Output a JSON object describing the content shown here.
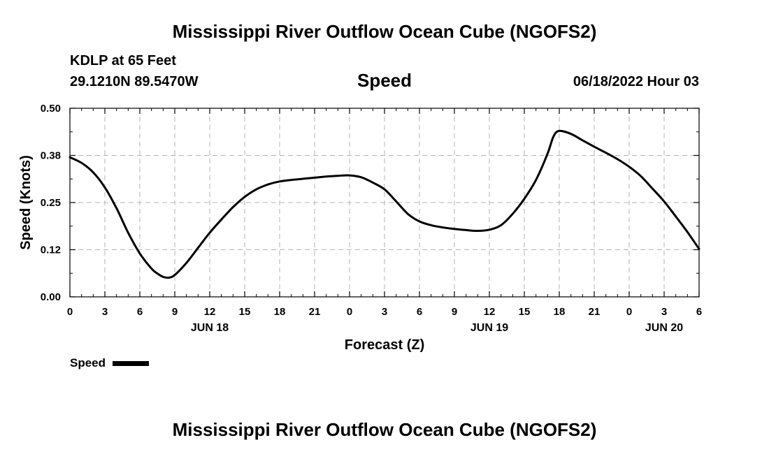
{
  "page": {
    "title": "Mississippi River Outflow Ocean Cube (NGOFS2)",
    "station_line": "KDLP at 65 Feet",
    "coords_line": "29.1210N  89.5470W",
    "datetime": "06/18/2022 Hour 03",
    "footer_title": "Mississippi River Outflow Ocean Cube (NGOFS2)"
  },
  "chart_data": {
    "type": "line",
    "title": "Speed",
    "xlabel": "Forecast (Z)",
    "ylabel": "Speed (Knots)",
    "xlim": [
      0,
      54
    ],
    "ylim": [
      0,
      0.5
    ],
    "grid": true,
    "x_ticks": [
      0,
      3,
      6,
      9,
      12,
      15,
      18,
      21,
      24,
      27,
      30,
      33,
      36,
      39,
      42,
      45,
      48,
      51,
      54
    ],
    "x_tick_labels": [
      "0",
      "3",
      "6",
      "9",
      "12",
      "15",
      "18",
      "21",
      "0",
      "3",
      "6",
      "9",
      "12",
      "15",
      "18",
      "21",
      "0",
      "3",
      "6"
    ],
    "y_ticks": [
      0,
      0.125,
      0.25,
      0.375,
      0.5
    ],
    "y_tick_labels": [
      "0.00",
      "0.12",
      "0.25",
      "0.38",
      "0.50"
    ],
    "date_labels": [
      {
        "x": 12,
        "label": "JUN 18"
      },
      {
        "x": 36,
        "label": "JUN 19"
      },
      {
        "x": 51,
        "label": "JUN 20"
      }
    ],
    "legend": {
      "position": "bottom-left",
      "label": "Speed"
    },
    "series": [
      {
        "name": "Speed",
        "color": "#000000",
        "x": [
          0,
          1,
          2,
          3,
          4,
          5,
          6,
          7,
          7.5,
          8,
          8.5,
          9,
          10,
          11,
          12,
          13,
          14,
          15,
          16,
          17,
          18,
          19,
          20,
          21,
          22,
          23,
          24,
          25,
          26,
          27,
          28,
          29,
          30,
          31,
          32,
          33,
          34,
          35,
          36,
          37,
          38,
          39,
          40,
          41,
          41.5,
          42,
          43,
          44,
          45,
          46,
          47,
          48,
          49,
          50,
          51,
          52,
          53,
          54
        ],
        "values": [
          0.37,
          0.355,
          0.33,
          0.29,
          0.235,
          0.17,
          0.115,
          0.075,
          0.062,
          0.053,
          0.051,
          0.058,
          0.09,
          0.13,
          0.17,
          0.205,
          0.238,
          0.265,
          0.285,
          0.298,
          0.306,
          0.31,
          0.313,
          0.316,
          0.319,
          0.321,
          0.322,
          0.317,
          0.303,
          0.285,
          0.253,
          0.22,
          0.2,
          0.19,
          0.184,
          0.18,
          0.177,
          0.175,
          0.178,
          0.19,
          0.22,
          0.26,
          0.31,
          0.38,
          0.425,
          0.44,
          0.432,
          0.415,
          0.398,
          0.382,
          0.365,
          0.345,
          0.32,
          0.287,
          0.253,
          0.213,
          0.172,
          0.127
        ]
      }
    ]
  }
}
